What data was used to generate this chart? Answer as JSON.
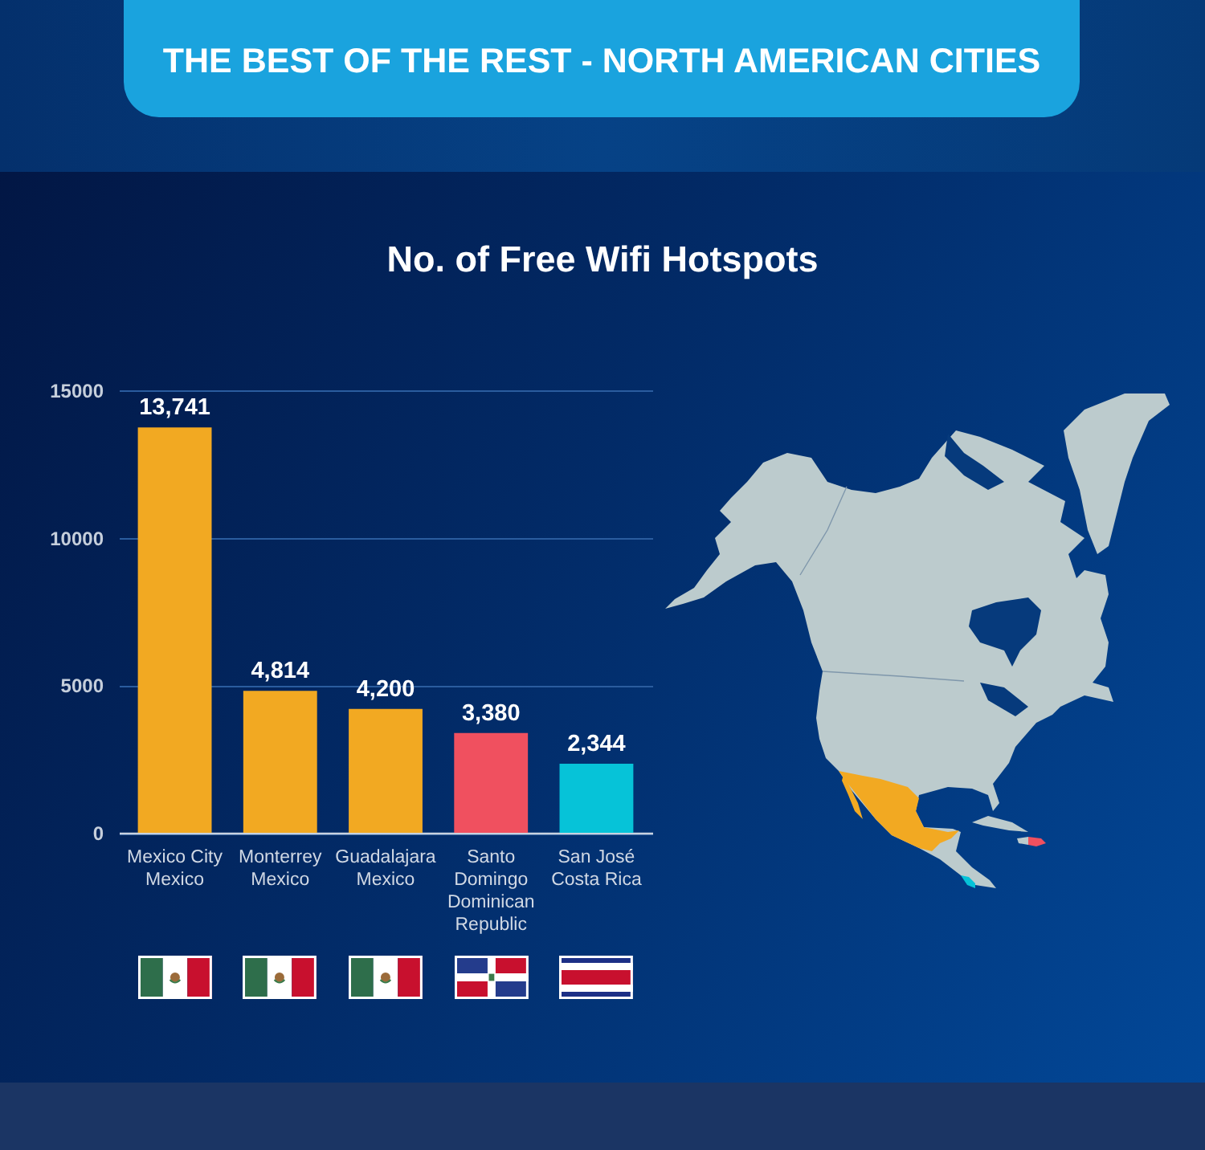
{
  "chart_data": {
    "type": "bar",
    "title": "THE BEST OF THE REST - NORTH AMERICAN CITIES",
    "subtitle": "No. of Free Wifi Hotspots",
    "categories": [
      "Mexico City\nMexico",
      "Monterrey\nMexico",
      "Guadalajara\nMexico",
      "Santo Domingo\nDominican Republic",
      "San José\nCosta Rica"
    ],
    "values": [
      13741,
      4814,
      4200,
      3380,
      2344
    ],
    "value_labels": [
      "13,741",
      "4,814",
      "4,200",
      "3,380",
      "2,344"
    ],
    "colors": [
      "#f2a922",
      "#f2a922",
      "#f2a922",
      "#f0505f",
      "#06c3d8"
    ],
    "ylim": [
      0,
      15000
    ],
    "yticks": [
      0,
      5000,
      10000,
      15000
    ],
    "grid": "y"
  }
}
